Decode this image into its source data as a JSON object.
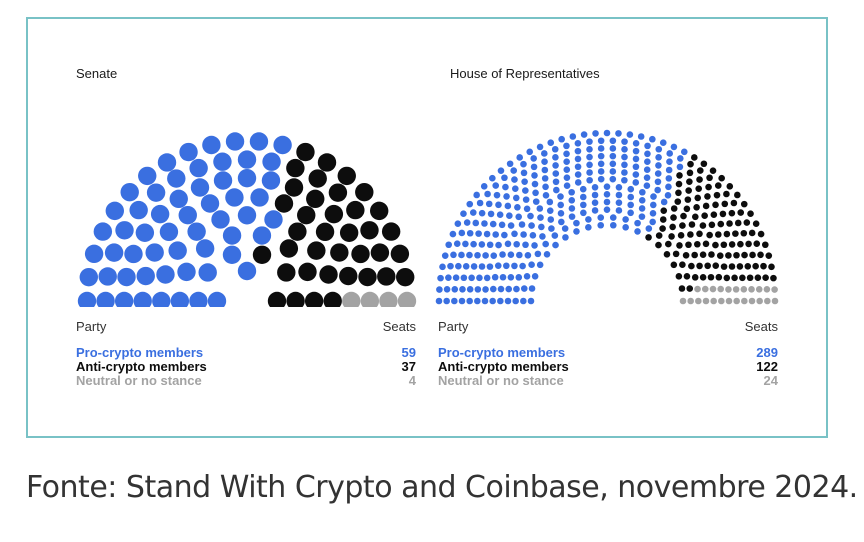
{
  "caption": "Fonte: Stand With Crypto and Coinbase, novembre 2024.",
  "colors": {
    "pro": "#3a6fe0",
    "anti": "#0d0d0d",
    "neutral": "#a3a3a3"
  },
  "chart_data": [
    {
      "type": "parliament",
      "title": "Senate",
      "legend_header": {
        "party": "Party",
        "seats": "Seats"
      },
      "series": [
        {
          "name": "Pro-crypto members",
          "value": 59,
          "display": "59"
        },
        {
          "name": "Anti-crypto members",
          "value": 37,
          "display": "37"
        },
        {
          "name": "Neutral or no stance",
          "value": 4,
          "display": "4"
        }
      ]
    },
    {
      "type": "parliament",
      "title": "House of Representatives",
      "legend_header": {
        "party": "Party",
        "seats": "Seats"
      },
      "series": [
        {
          "name": "Pro-crypto members",
          "value": 289,
          "display": "289"
        },
        {
          "name": "Anti-crypto members",
          "value": 122,
          "display": "122"
        },
        {
          "name": "Neutral or no stance",
          "value": 24,
          "display": "24"
        }
      ]
    }
  ]
}
